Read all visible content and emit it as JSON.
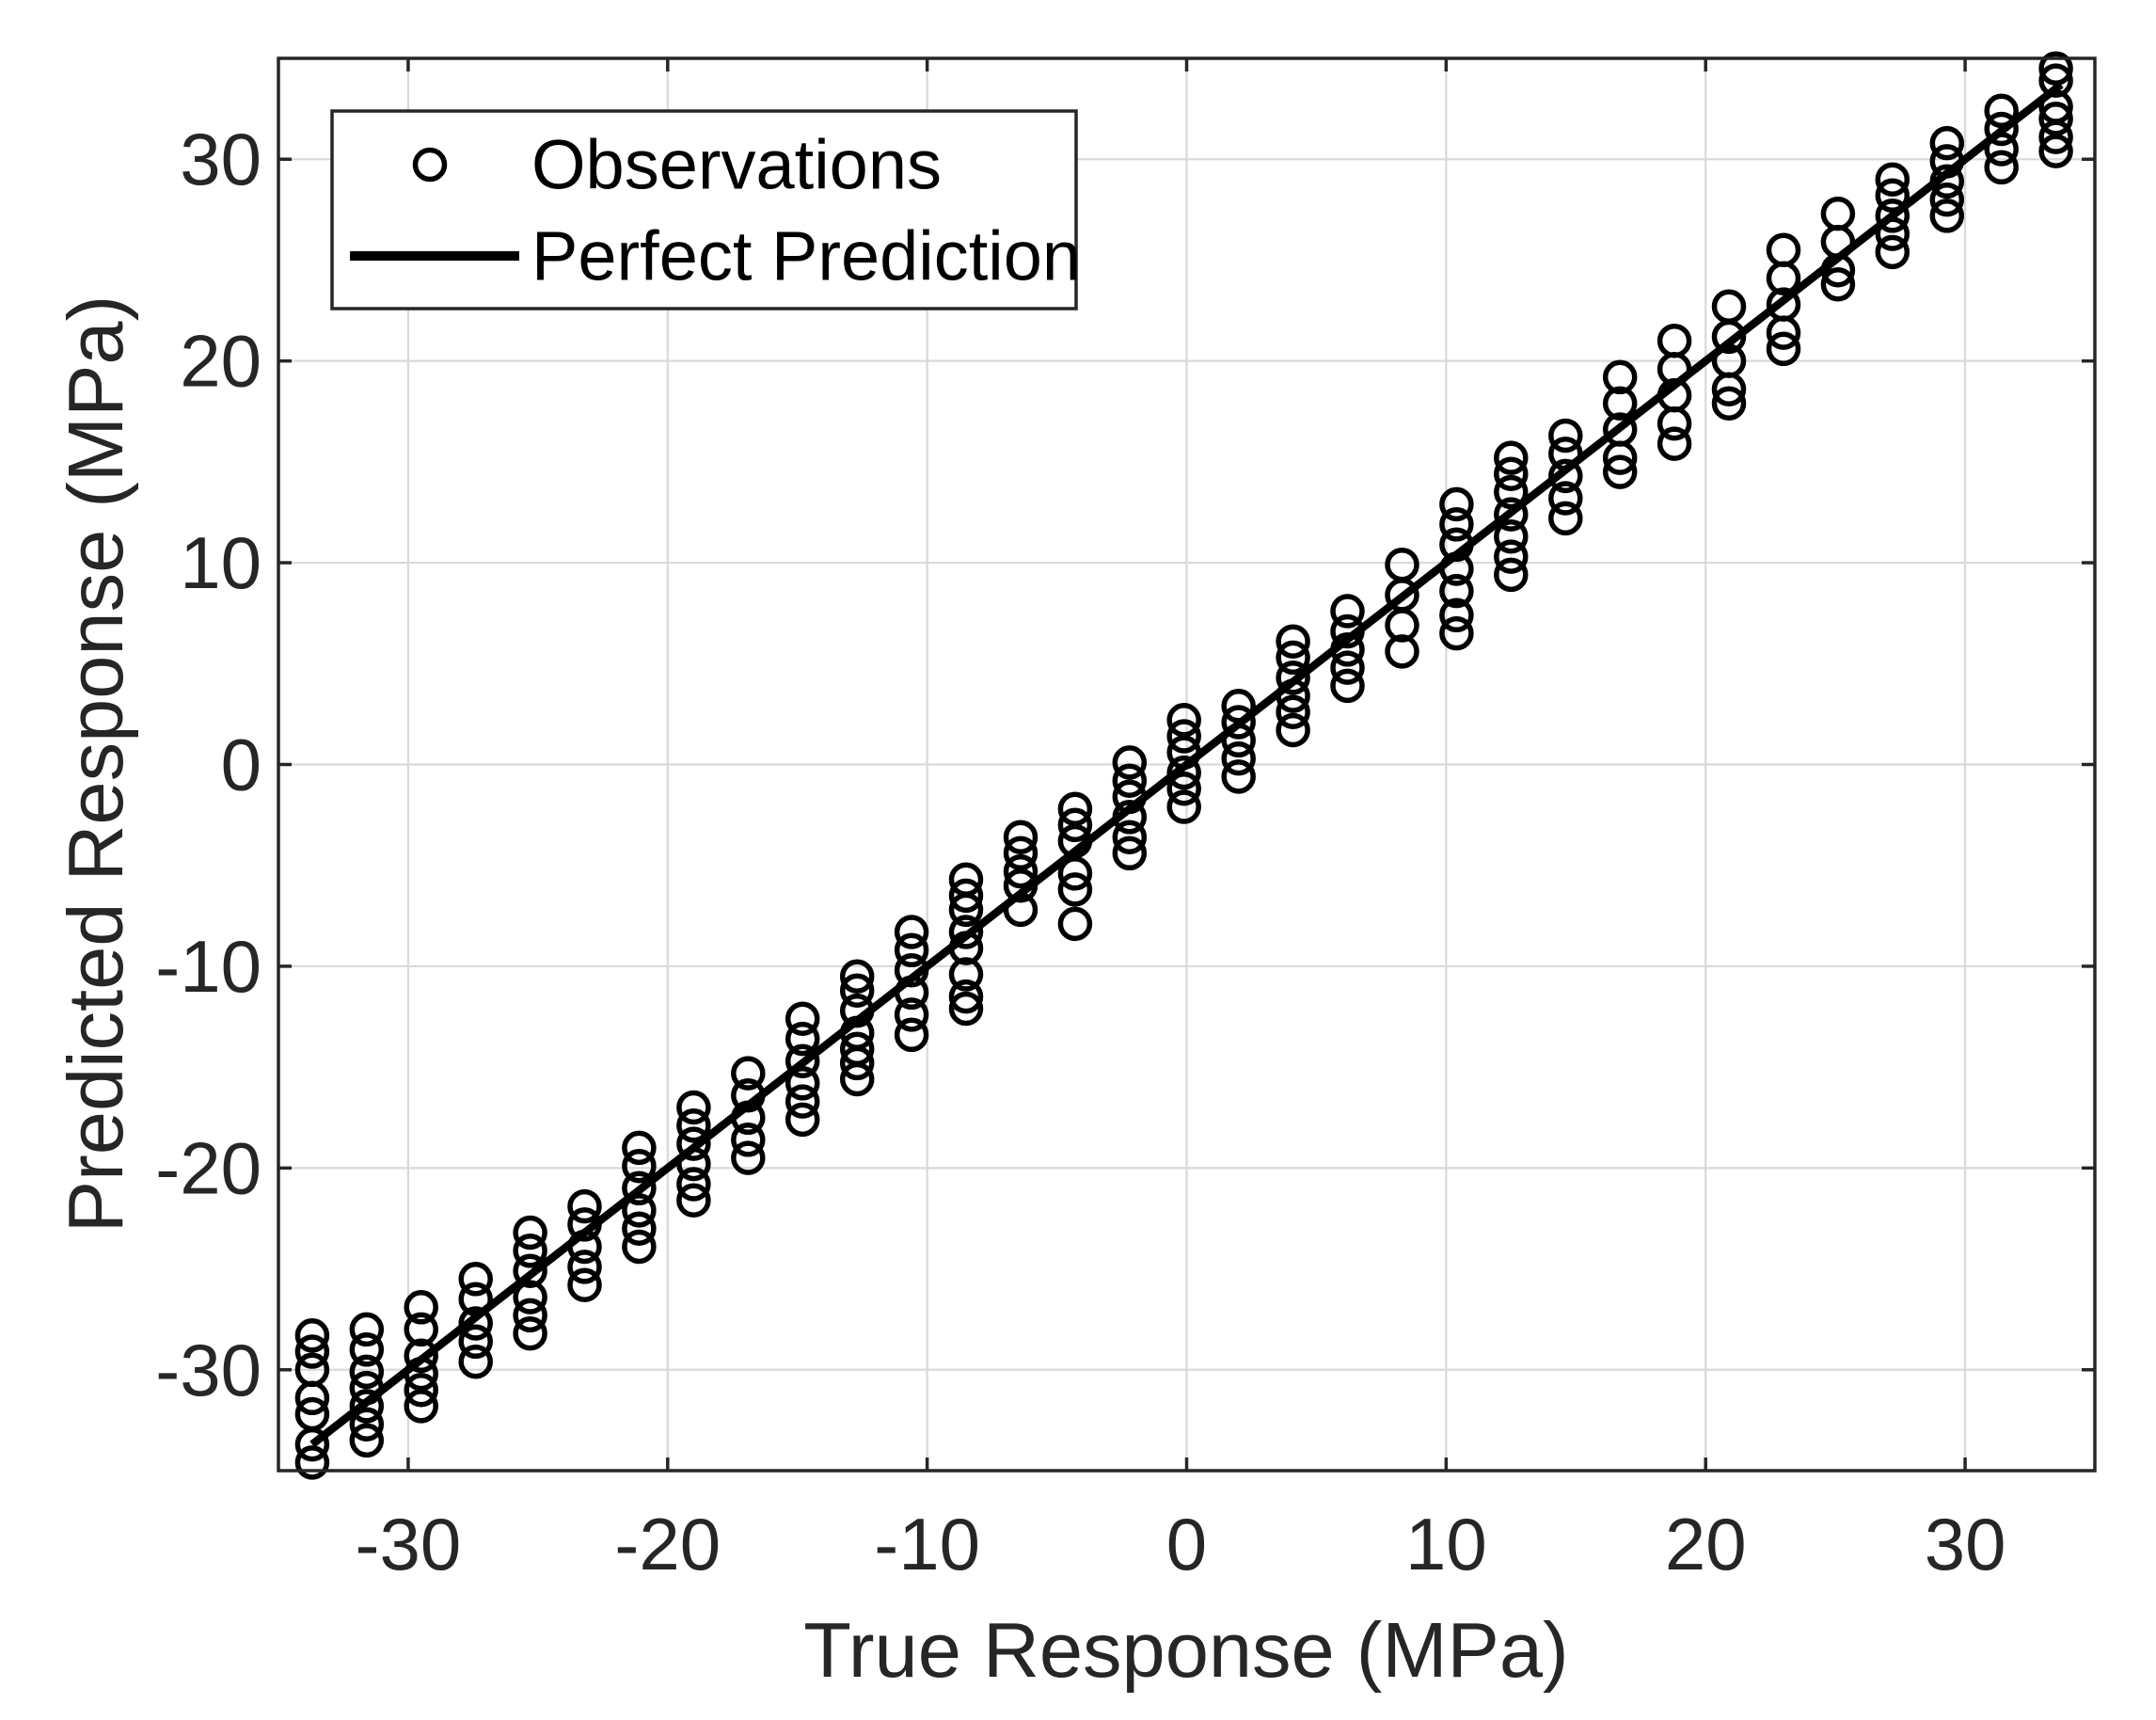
{
  "chart_data": {
    "type": "scatter",
    "xlabel": "True Response (MPa)",
    "ylabel": "Predicted Response (MPa)",
    "xlim": [
      -35,
      35
    ],
    "ylim": [
      -35,
      35
    ],
    "xticks": [
      -30,
      -20,
      -10,
      0,
      10,
      20,
      30
    ],
    "yticks": [
      -30,
      -20,
      -10,
      0,
      10,
      20,
      30
    ],
    "grid": true,
    "legend_position": "top-left",
    "legend": [
      {
        "label": "Observations",
        "marker": "circle"
      },
      {
        "label": "Perfect Prediction",
        "marker": "line"
      }
    ],
    "colors": {
      "marker": "#000000",
      "line": "#000000",
      "grid": "#d9d9d9",
      "axis": "#262626",
      "text": "#262626"
    },
    "series": [
      {
        "name": "Observations",
        "type": "scatter",
        "clusters": [
          {
            "x": -33.7,
            "y": [
              -34.6,
              -33.7,
              -32.2,
              -31.4,
              -30.0,
              -29.1,
              -28.3
            ]
          },
          {
            "x": -31.6,
            "y": [
              -33.5,
              -32.7,
              -31.8,
              -30.9,
              -30.1,
              -29.0,
              -28.0
            ]
          },
          {
            "x": -29.5,
            "y": [
              -31.8,
              -31.0,
              -30.2,
              -29.3,
              -28.0,
              -26.9
            ]
          },
          {
            "x": -27.4,
            "y": [
              -29.6,
              -28.6,
              -27.7,
              -26.5,
              -25.5
            ]
          },
          {
            "x": -25.3,
            "y": [
              -28.2,
              -27.3,
              -26.4,
              -25.1,
              -24.1,
              -23.2
            ]
          },
          {
            "x": -23.2,
            "y": [
              -25.8,
              -24.9,
              -23.9,
              -22.8,
              -21.9
            ]
          },
          {
            "x": -21.1,
            "y": [
              -23.9,
              -23.0,
              -22.1,
              -21.0,
              -19.9,
              -19.0
            ]
          },
          {
            "x": -19.0,
            "y": [
              -21.6,
              -20.8,
              -19.8,
              -18.8,
              -17.9,
              -17.0
            ]
          },
          {
            "x": -16.9,
            "y": [
              -19.5,
              -18.6,
              -17.5,
              -16.4,
              -15.3
            ]
          },
          {
            "x": -14.8,
            "y": [
              -17.6,
              -16.7,
              -15.8,
              -14.7,
              -13.6,
              -12.6
            ]
          },
          {
            "x": -12.7,
            "y": [
              -15.6,
              -14.8,
              -14.1,
              -13.3,
              -12.2,
              -11.2,
              -10.5
            ]
          },
          {
            "x": -10.6,
            "y": [
              -13.4,
              -12.4,
              -11.3,
              -10.2,
              -9.2,
              -8.3
            ]
          },
          {
            "x": -8.5,
            "y": [
              -12.1,
              -11.5,
              -10.4,
              -9.1,
              -8.3,
              -7.2,
              -6.5,
              -5.7
            ]
          },
          {
            "x": -6.4,
            "y": [
              -7.2,
              -6.0,
              -5.3,
              -4.4,
              -3.6
            ]
          },
          {
            "x": -4.3,
            "y": [
              -7.9,
              -6.2,
              -5.4,
              -3.8,
              -3.0,
              -2.2
            ]
          },
          {
            "x": -2.2,
            "y": [
              -4.4,
              -3.6,
              -2.6,
              -1.6,
              -0.8,
              0.1
            ]
          },
          {
            "x": -0.1,
            "y": [
              -2.1,
              -1.2,
              -0.4,
              0.6,
              1.4,
              2.2
            ]
          },
          {
            "x": 2.0,
            "y": [
              -0.6,
              0.3,
              1.2,
              2.1,
              2.9
            ]
          },
          {
            "x": 4.1,
            "y": [
              1.7,
              2.6,
              3.4,
              4.3,
              5.3,
              6.1
            ]
          },
          {
            "x": 6.2,
            "y": [
              3.9,
              4.8,
              5.7,
              6.6,
              7.6
            ]
          },
          {
            "x": 8.3,
            "y": [
              5.6,
              6.9,
              8.4,
              9.9
            ]
          },
          {
            "x": 10.4,
            "y": [
              6.5,
              7.4,
              8.6,
              9.7,
              10.9,
              11.9,
              12.9
            ]
          },
          {
            "x": 12.5,
            "y": [
              9.4,
              10.3,
              11.3,
              12.4,
              13.5,
              14.4,
              15.2
            ]
          },
          {
            "x": 14.6,
            "y": [
              12.2,
              13.2,
              14.3,
              15.4,
              16.3
            ]
          },
          {
            "x": 16.7,
            "y": [
              14.5,
              15.2,
              16.6,
              17.9,
              19.2
            ]
          },
          {
            "x": 18.8,
            "y": [
              15.9,
              16.9,
              18.3,
              19.6,
              21.0
            ]
          },
          {
            "x": 20.9,
            "y": [
              17.9,
              18.6,
              20.0,
              21.2,
              22.7
            ]
          },
          {
            "x": 23.0,
            "y": [
              20.6,
              21.4,
              22.8,
              24.1,
              25.5
            ]
          },
          {
            "x": 25.1,
            "y": [
              23.8,
              24.5,
              25.9,
              27.3
            ]
          },
          {
            "x": 27.2,
            "y": [
              25.4,
              26.3,
              27.2,
              28.2,
              29.0
            ]
          },
          {
            "x": 29.3,
            "y": [
              27.2,
              28.0,
              28.9,
              29.9,
              30.8
            ]
          },
          {
            "x": 31.4,
            "y": [
              29.6,
              30.5,
              31.5,
              32.4
            ]
          },
          {
            "x": 33.5,
            "y": [
              30.4,
              31.1,
              32.0,
              32.6,
              33.9,
              34.5
            ]
          }
        ]
      },
      {
        "name": "Perfect Prediction",
        "type": "line",
        "points": [
          [
            -33.7,
            -33.7
          ],
          [
            33.7,
            33.7
          ]
        ]
      }
    ]
  }
}
